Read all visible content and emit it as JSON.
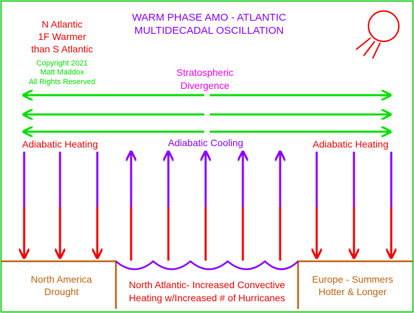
{
  "title_line1": "WARM PHASE AMO - ATLANTIC",
  "title_line2": "MULTIDECADAL OSCILLATION",
  "left_note": [
    "N Atlantic",
    "1F Warmer",
    "than S Atlantic"
  ],
  "copyright": [
    "Copyright 2021",
    "Matt Maddox",
    "All Rights Reserved"
  ],
  "divergence": [
    "Stratospheric",
    "Divergence"
  ],
  "labels": {
    "left_heating": "Adiabatic Heating",
    "cooling": "Adiabatic Cooling",
    "right_heating": "Adiabatic Heating"
  },
  "regions": {
    "left": [
      "North America",
      "Drought"
    ],
    "center": [
      "North Atlantic- Increased Convective",
      "Heating w/Increased  # of Hurricanes"
    ],
    "right": [
      "Europe - Summers",
      "Hotter & Longer"
    ]
  },
  "colors": {
    "frame": "#22cc22",
    "title": "#8800ff",
    "red": "#ee0000",
    "green": "#00dd00",
    "divergence": "#ee00ee",
    "purple": "#8800ff",
    "ground": "#c06010",
    "region_text": "#c06010"
  },
  "icons": [
    "sun-icon"
  ]
}
